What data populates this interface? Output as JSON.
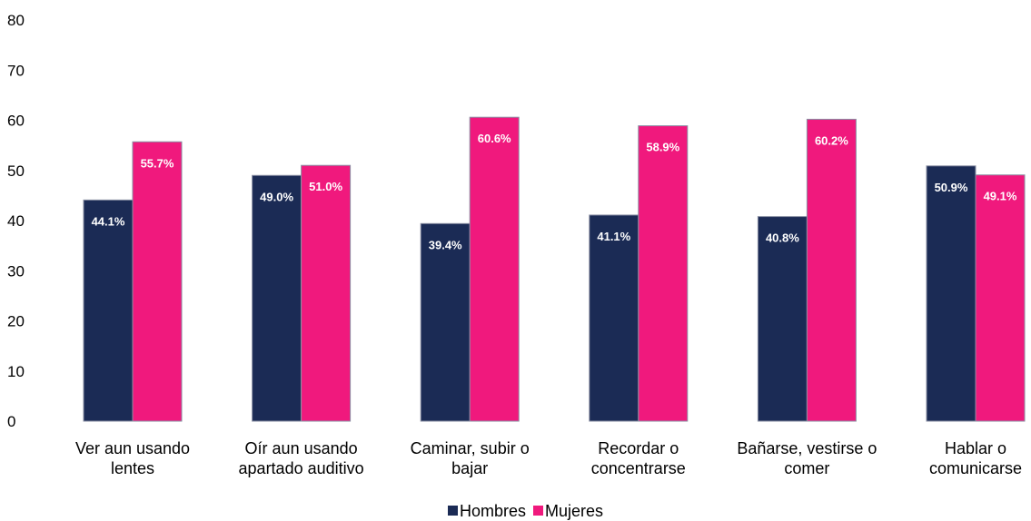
{
  "chart_data": {
    "type": "bar",
    "categories": [
      [
        "Ver aun usando",
        "lentes"
      ],
      [
        "Oír aun usando",
        "apartado auditivo"
      ],
      [
        "Caminar, subir o",
        "bajar"
      ],
      [
        "Recordar o",
        "concentrarse"
      ],
      [
        "Bañarse, vestirse o",
        "comer"
      ],
      [
        "Hablar o",
        "comunicarse"
      ]
    ],
    "series": [
      {
        "name": "Hombres",
        "color": "#1b2b55",
        "values": [
          44.1,
          49.0,
          39.4,
          41.1,
          40.8,
          50.9
        ],
        "labels": [
          "44.1%",
          "49.0%",
          "39.4%",
          "41.1%",
          "40.8%",
          "50.9%"
        ]
      },
      {
        "name": "Mujeres",
        "color": "#f0197d",
        "values": [
          55.7,
          51.0,
          60.6,
          58.9,
          60.2,
          49.1
        ],
        "labels": [
          "55.7%",
          "51.0%",
          "60.6%",
          "58.9%",
          "60.2%",
          "49.1%"
        ]
      }
    ],
    "yticks": [
      "0",
      "10",
      "20",
      "30",
      "40",
      "50",
      "60",
      "70",
      "80"
    ],
    "ylim": [
      0,
      80
    ],
    "grid": false,
    "legend_position": "bottom"
  }
}
